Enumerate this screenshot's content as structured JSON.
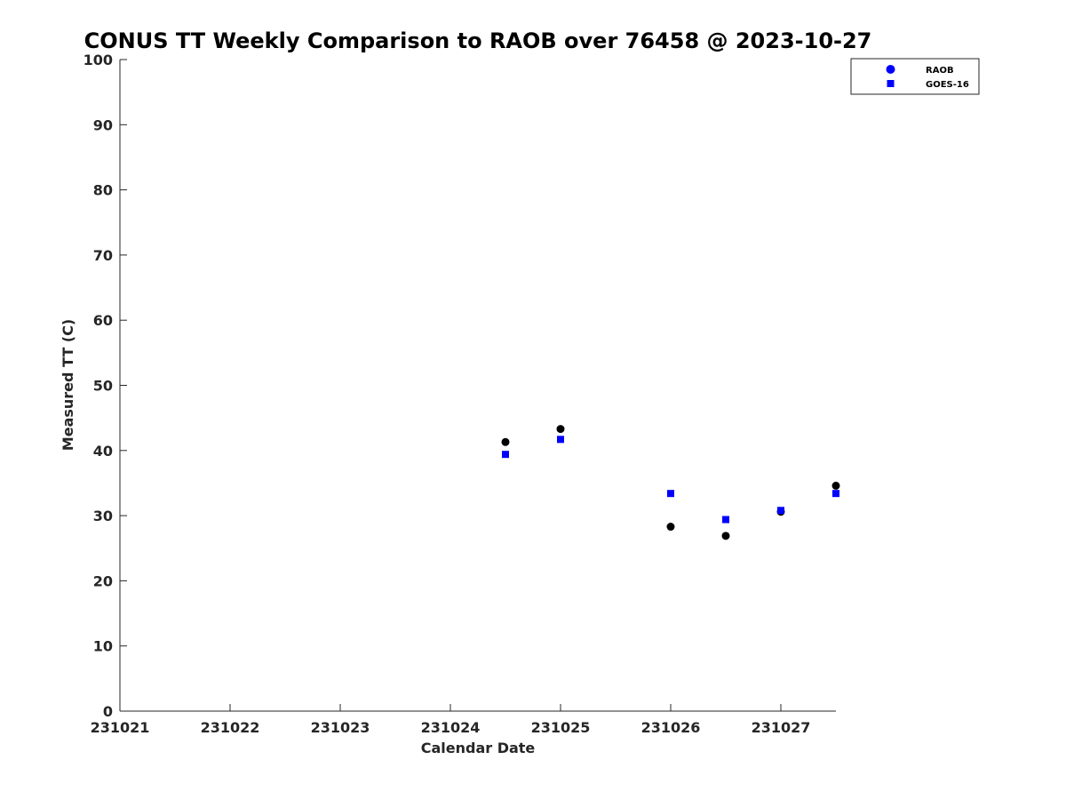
{
  "chart_data": {
    "type": "scatter",
    "title": "CONUS TT Weekly Comparison to RAOB over 76458 @ 2023-10-27",
    "xlabel": "Calendar Date",
    "ylabel": "Measured TT (C)",
    "xlim": [
      231021,
      231027.5
    ],
    "ylim": [
      0,
      100
    ],
    "x_ticks": [
      231021,
      231022,
      231023,
      231024,
      231025,
      231026,
      231027
    ],
    "x_tick_labels": [
      "231021",
      "231022",
      "231023",
      "231024",
      "231025",
      "231026",
      "231027"
    ],
    "y_ticks": [
      0,
      10,
      20,
      30,
      40,
      50,
      60,
      70,
      80,
      90,
      100
    ],
    "y_tick_labels": [
      "0",
      "10",
      "20",
      "30",
      "40",
      "50",
      "60",
      "70",
      "80",
      "90",
      "100"
    ],
    "grid": false,
    "legend_position": "top-right",
    "series": [
      {
        "name": "RAOB",
        "marker": "circle",
        "color": "#000000",
        "legend_color": "#0000ff",
        "x": [
          231024.5,
          231025,
          231026,
          231026.5,
          231027,
          231027.5
        ],
        "y": [
          41.3,
          43.3,
          28.3,
          26.9,
          30.6,
          34.6
        ]
      },
      {
        "name": "GOES-16",
        "marker": "square",
        "color": "#0000ff",
        "legend_color": "#0000ff",
        "x": [
          231024.5,
          231025,
          231026,
          231026.5,
          231027,
          231027.5
        ],
        "y": [
          39.4,
          41.7,
          33.4,
          29.4,
          30.8,
          33.4
        ]
      }
    ]
  }
}
